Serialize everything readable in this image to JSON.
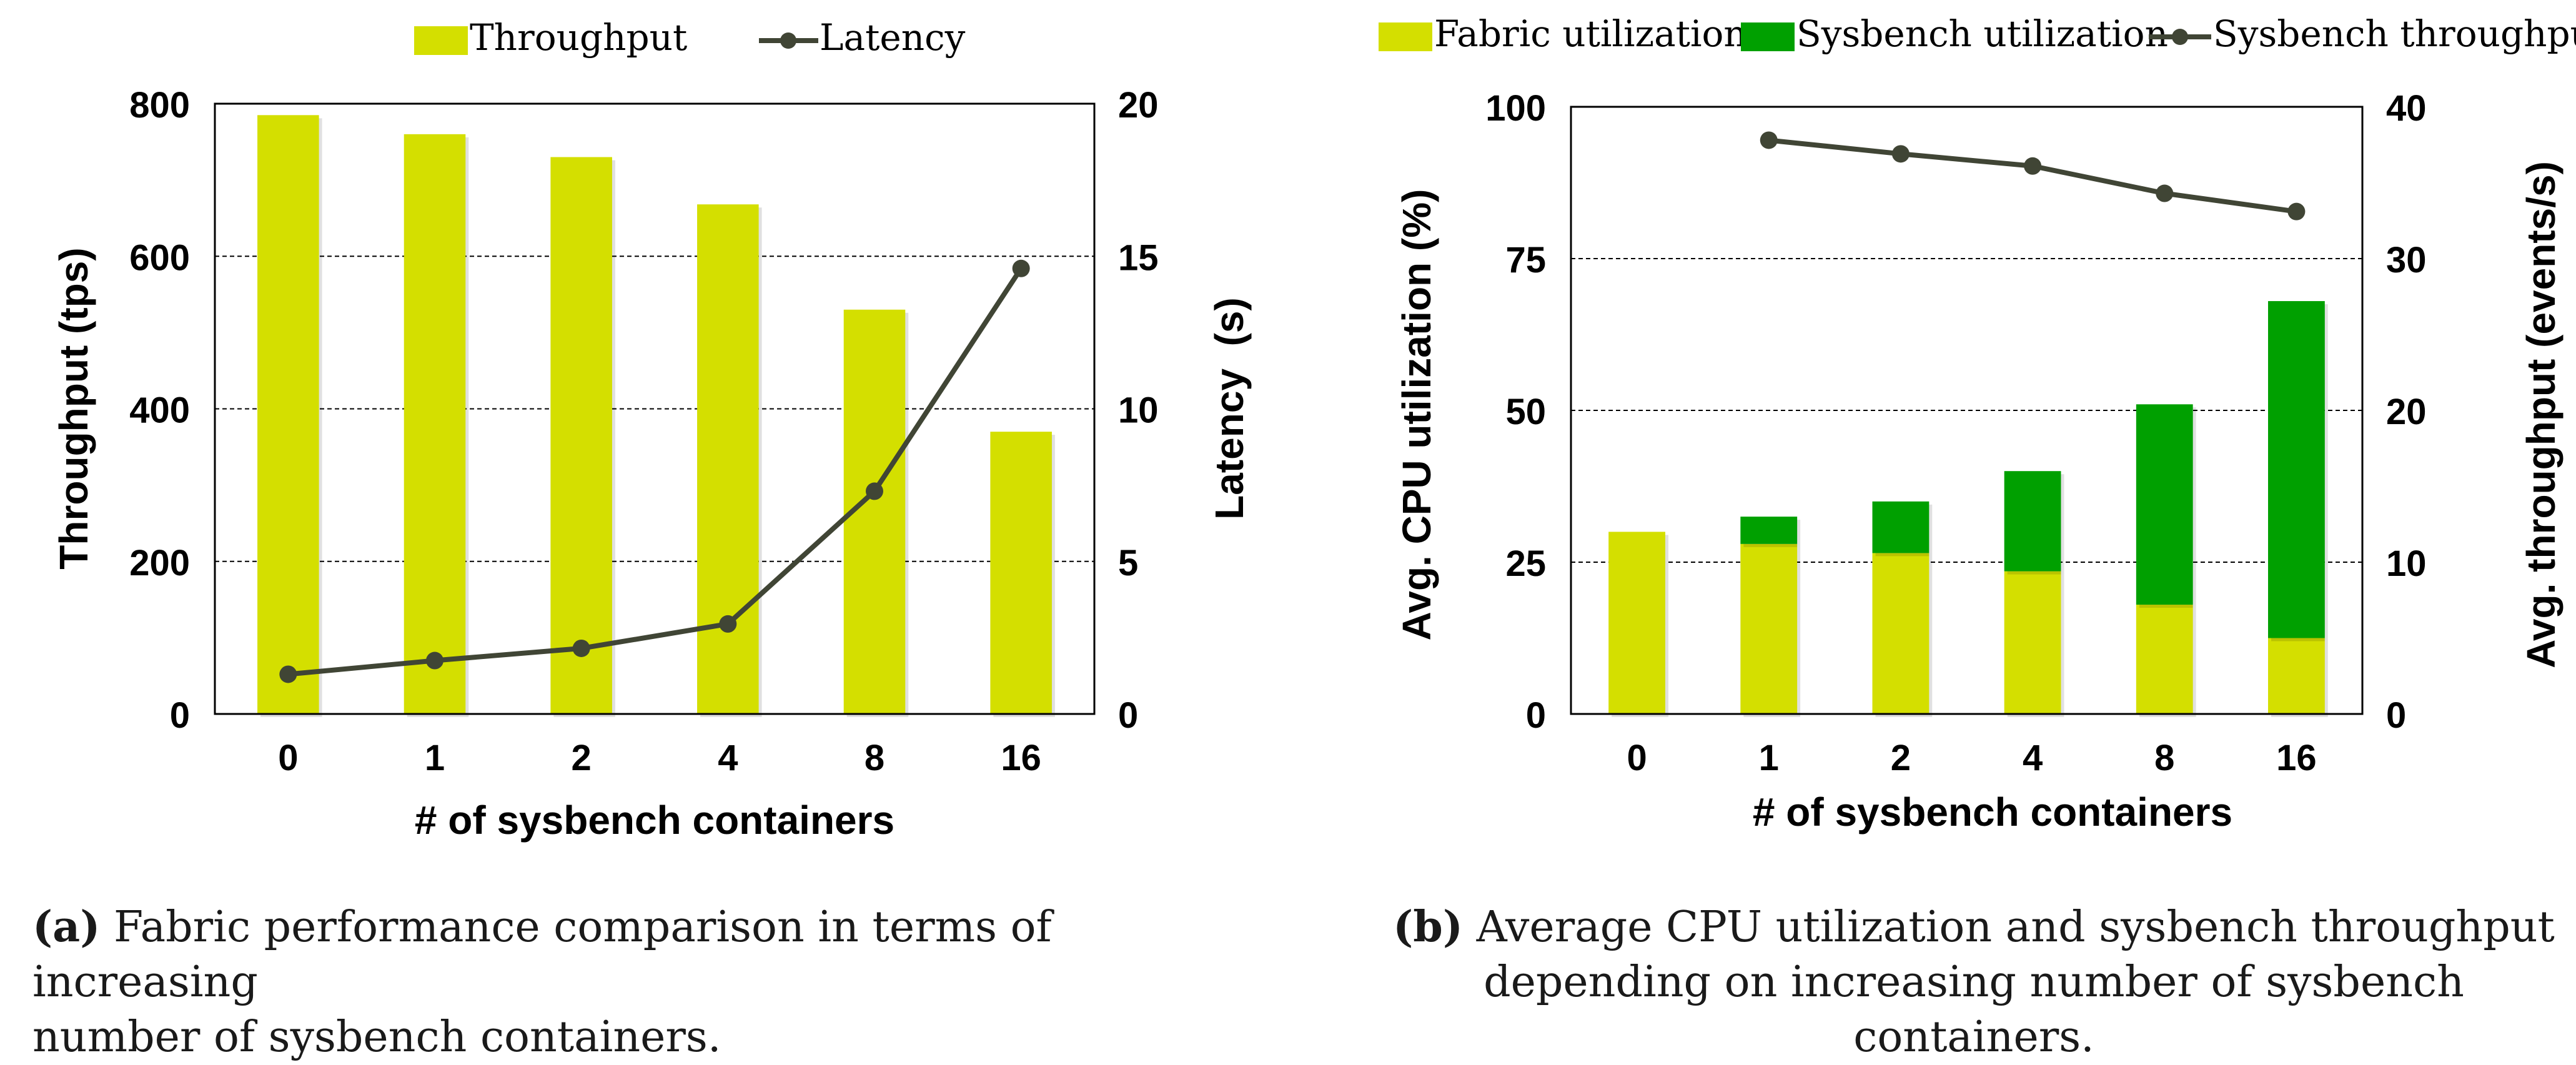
{
  "chart_data": [
    {
      "type": "bar+line",
      "categories": [
        "0",
        "1",
        "2",
        "4",
        "8",
        "16"
      ],
      "xlabel": "# of sysbench containers",
      "ylabel": "Throughput (tps)",
      "y2label": "Latency  (s)",
      "ylim": [
        0,
        800
      ],
      "yticks": [
        "0",
        "200",
        "400",
        "600",
        "800"
      ],
      "y2lim": [
        0,
        20
      ],
      "y2ticks": [
        "0",
        "5",
        "10",
        "15",
        "20"
      ],
      "grid": true,
      "legend_position": "top",
      "series": [
        {
          "name": "Throughput",
          "kind": "bar",
          "axis": "left",
          "color": "#d4df00",
          "values": [
            785,
            760,
            730,
            668,
            530,
            370
          ]
        },
        {
          "name": "Latency",
          "kind": "line",
          "axis": "right",
          "color": "#404535",
          "values": [
            1.3,
            1.75,
            2.15,
            2.95,
            7.3,
            14.6
          ]
        }
      ],
      "caption_label": "(a)",
      "caption_text": "Fabric performance comparison in terms of increasing",
      "caption_text2": "number of sysbench containers."
    },
    {
      "type": "stacked-bar+line",
      "categories": [
        "0",
        "1",
        "2",
        "4",
        "8",
        "16"
      ],
      "xlabel": "# of sysbench containers",
      "ylabel": "Avg. CPU utilization (%)",
      "y2label": "Avg. throughput (events/s)",
      "ylim": [
        0,
        100
      ],
      "yticks": [
        "0",
        "25",
        "50",
        "75",
        "100"
      ],
      "y2lim": [
        0,
        40
      ],
      "y2ticks": [
        "0",
        "10",
        "20",
        "30",
        "40"
      ],
      "grid": true,
      "legend_position": "top",
      "series": [
        {
          "name": "Fabric utilization",
          "kind": "bar",
          "axis": "left",
          "color": "#d4df00",
          "values": [
            30,
            28,
            26.5,
            23.5,
            18,
            12.5
          ]
        },
        {
          "name": "Sysbench utilization",
          "kind": "bar",
          "axis": "left",
          "color": "#00a000",
          "values": [
            0,
            4.5,
            8.5,
            16.5,
            33,
            55.5
          ]
        },
        {
          "name": "Sysbench throughput",
          "kind": "line",
          "axis": "right",
          "color": "#404535",
          "values": [
            null,
            37.8,
            36.9,
            36.1,
            34.3,
            33.1
          ]
        }
      ],
      "caption_label": "(b)",
      "caption_text": "Average CPU utilization and sysbench throughput",
      "caption_text2": "depending on increasing number of sysbench containers."
    }
  ]
}
